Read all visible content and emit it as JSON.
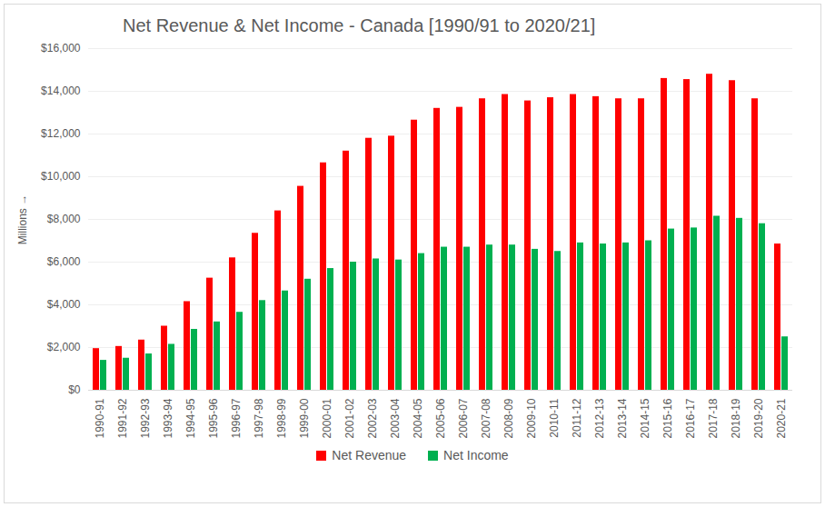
{
  "chart_data": {
    "type": "bar",
    "title": "Net Revenue & Net Income - Canada [1990/91 to 2020/21]",
    "y_label": "Millions",
    "categories": [
      "1990-91",
      "1991-92",
      "1992-93",
      "1993-94",
      "1994-95",
      "1995-96",
      "1996-97",
      "1997-98",
      "1998-99",
      "1999-00",
      "2000-01",
      "2001-02",
      "2002-03",
      "2003-04",
      "2004-05",
      "2005-06",
      "2006-07",
      "2007-08",
      "2008-09",
      "2009-10",
      "2010-11",
      "2011-12",
      "2012-13",
      "2013-14",
      "2014-15",
      "2015-16",
      "2016-17",
      "2017-18",
      "2018-19",
      "2019-20",
      "2020-21"
    ],
    "series": [
      {
        "name": "Net Revenue",
        "color": "#ff0000",
        "values": [
          1950,
          2050,
          2350,
          3000,
          4150,
          5250,
          6200,
          7350,
          8400,
          9550,
          10650,
          11200,
          11800,
          11900,
          12650,
          13200,
          13250,
          13650,
          13850,
          13550,
          13700,
          13850,
          13750,
          13650,
          13650,
          14600,
          14550,
          14800,
          14500,
          13650,
          6850
        ]
      },
      {
        "name": "Net Income",
        "color": "#00b050",
        "values": [
          1400,
          1500,
          1700,
          2150,
          2850,
          3200,
          3650,
          4200,
          4650,
          5200,
          5700,
          6000,
          6150,
          6100,
          6400,
          6700,
          6700,
          6800,
          6800,
          6600,
          6500,
          6900,
          6850,
          6900,
          7000,
          7550,
          7600,
          8150,
          8050,
          7800,
          2500
        ]
      }
    ],
    "ylim": [
      0,
      16000
    ],
    "yticks": [
      {
        "value": 0,
        "label": "$0"
      },
      {
        "value": 2000,
        "label": "$2,000"
      },
      {
        "value": 4000,
        "label": "$4,000"
      },
      {
        "value": 6000,
        "label": "$6,000"
      },
      {
        "value": 8000,
        "label": "$8,000"
      },
      {
        "value": 10000,
        "label": "$10,000"
      },
      {
        "value": 12000,
        "label": "$12,000"
      },
      {
        "value": 14000,
        "label": "$14,000"
      },
      {
        "value": 16000,
        "label": "$16,000"
      }
    ],
    "grid": true,
    "legend": "bottom"
  }
}
